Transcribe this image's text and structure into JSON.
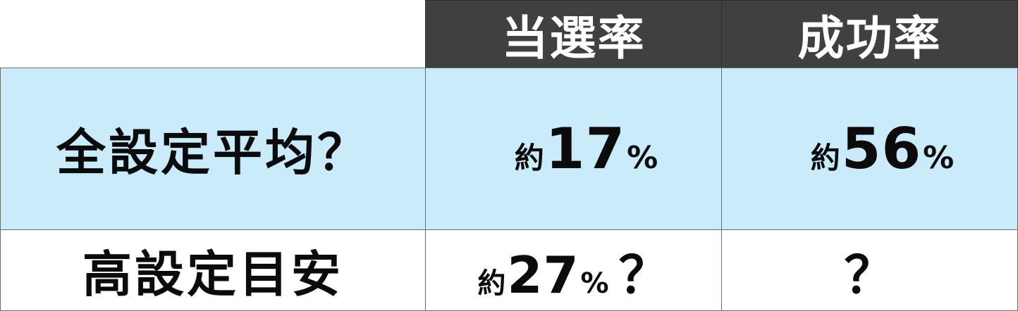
{
  "header": {
    "col_1": "当選率",
    "col_2": "成功率"
  },
  "rows": [
    {
      "label": "全設定平均？",
      "col_1": {
        "prefix": "約",
        "number": "17",
        "unit": "%",
        "tail": ""
      },
      "col_2": {
        "prefix": "約",
        "number": "56",
        "unit": "%",
        "tail": ""
      }
    },
    {
      "label": "高設定目安",
      "col_1": {
        "prefix": "約",
        "number": "27",
        "unit": "%",
        "tail": "？"
      },
      "col_2": {
        "text": "？"
      }
    }
  ],
  "colors": {
    "header_bg": "#404040",
    "header_text": "#ffffff",
    "row_highlight": "#c9ebfa",
    "row_plain": "#ffffff",
    "text": "#0b0b0b"
  }
}
